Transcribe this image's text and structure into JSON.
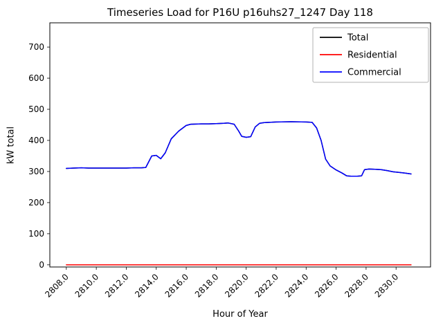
{
  "figure": {
    "title": "Timeseries Load for P16U p16uhs27_1247  Day 118",
    "xlabel": "Hour of Year",
    "ylabel": "kW total"
  },
  "chart_data": {
    "type": "line",
    "title": "Timeseries Load for P16U p16uhs27_1247  Day 118",
    "xlabel": "Hour of Year",
    "ylabel": "kW total",
    "xlim": [
      2806.9,
      2832.3
    ],
    "ylim": [
      -7,
      778
    ],
    "xticks": [
      2808,
      2810,
      2812,
      2814,
      2816,
      2818,
      2820,
      2822,
      2824,
      2826,
      2828,
      2830
    ],
    "yticks": [
      0,
      100,
      200,
      300,
      400,
      500,
      600,
      700
    ],
    "grid": false,
    "legend_position": "upper right",
    "legend_entries": [
      "Total",
      "Residential",
      "Commercial"
    ],
    "series": [
      {
        "name": "Total",
        "color": "#000000",
        "points": [
          [
            2808,
            310
          ],
          [
            2808.5,
            311
          ],
          [
            2809,
            312
          ],
          [
            2809.5,
            311
          ],
          [
            2810,
            311
          ],
          [
            2811,
            311
          ],
          [
            2812,
            311
          ],
          [
            2812.5,
            312
          ],
          [
            2813,
            312
          ],
          [
            2813.3,
            313
          ],
          [
            2813.7,
            350
          ],
          [
            2814,
            352
          ],
          [
            2814.3,
            341
          ],
          [
            2814.6,
            360
          ],
          [
            2815,
            405
          ],
          [
            2815.5,
            430
          ],
          [
            2816,
            448
          ],
          [
            2816.3,
            452
          ],
          [
            2817,
            453
          ],
          [
            2817.5,
            453
          ],
          [
            2818,
            454
          ],
          [
            2818.5,
            455
          ],
          [
            2818.8,
            456
          ],
          [
            2819.2,
            452
          ],
          [
            2819.5,
            430
          ],
          [
            2819.7,
            413
          ],
          [
            2820,
            410
          ],
          [
            2820.3,
            412
          ],
          [
            2820.6,
            443
          ],
          [
            2820.9,
            455
          ],
          [
            2821.2,
            457
          ],
          [
            2822,
            459
          ],
          [
            2823,
            460
          ],
          [
            2824,
            459
          ],
          [
            2824.4,
            458
          ],
          [
            2824.7,
            440
          ],
          [
            2825,
            400
          ],
          [
            2825.3,
            340
          ],
          [
            2825.6,
            318
          ],
          [
            2826,
            305
          ],
          [
            2826.4,
            295
          ],
          [
            2826.7,
            286
          ],
          [
            2827,
            285
          ],
          [
            2827.4,
            285
          ],
          [
            2827.7,
            286
          ],
          [
            2827.9,
            306
          ],
          [
            2828.2,
            308
          ],
          [
            2828.6,
            307
          ],
          [
            2829,
            306
          ],
          [
            2829.4,
            303
          ],
          [
            2829.8,
            299
          ],
          [
            2830.2,
            297
          ],
          [
            2830.6,
            295
          ],
          [
            2831,
            292
          ]
        ]
      },
      {
        "name": "Residential",
        "color": "#ff0000",
        "points": [
          [
            2808,
            0
          ],
          [
            2812,
            0
          ],
          [
            2816,
            0
          ],
          [
            2820,
            0
          ],
          [
            2824,
            0
          ],
          [
            2828,
            0
          ],
          [
            2831,
            0
          ]
        ]
      },
      {
        "name": "Commercial",
        "color": "#0000ff",
        "points": [
          [
            2808,
            310
          ],
          [
            2808.5,
            311
          ],
          [
            2809,
            312
          ],
          [
            2809.5,
            311
          ],
          [
            2810,
            311
          ],
          [
            2811,
            311
          ],
          [
            2812,
            311
          ],
          [
            2812.5,
            312
          ],
          [
            2813,
            312
          ],
          [
            2813.3,
            313
          ],
          [
            2813.7,
            350
          ],
          [
            2814,
            352
          ],
          [
            2814.3,
            341
          ],
          [
            2814.6,
            360
          ],
          [
            2815,
            405
          ],
          [
            2815.5,
            430
          ],
          [
            2816,
            448
          ],
          [
            2816.3,
            452
          ],
          [
            2817,
            453
          ],
          [
            2817.5,
            453
          ],
          [
            2818,
            454
          ],
          [
            2818.5,
            455
          ],
          [
            2818.8,
            456
          ],
          [
            2819.2,
            452
          ],
          [
            2819.5,
            430
          ],
          [
            2819.7,
            413
          ],
          [
            2820,
            410
          ],
          [
            2820.3,
            412
          ],
          [
            2820.6,
            443
          ],
          [
            2820.9,
            455
          ],
          [
            2821.2,
            457
          ],
          [
            2822,
            459
          ],
          [
            2823,
            460
          ],
          [
            2824,
            459
          ],
          [
            2824.4,
            458
          ],
          [
            2824.7,
            440
          ],
          [
            2825,
            400
          ],
          [
            2825.3,
            340
          ],
          [
            2825.6,
            318
          ],
          [
            2826,
            305
          ],
          [
            2826.4,
            295
          ],
          [
            2826.7,
            286
          ],
          [
            2827,
            285
          ],
          [
            2827.4,
            285
          ],
          [
            2827.7,
            286
          ],
          [
            2827.9,
            306
          ],
          [
            2828.2,
            308
          ],
          [
            2828.6,
            307
          ],
          [
            2829,
            306
          ],
          [
            2829.4,
            303
          ],
          [
            2829.8,
            299
          ],
          [
            2830.2,
            297
          ],
          [
            2830.6,
            295
          ],
          [
            2831,
            292
          ]
        ]
      }
    ]
  }
}
